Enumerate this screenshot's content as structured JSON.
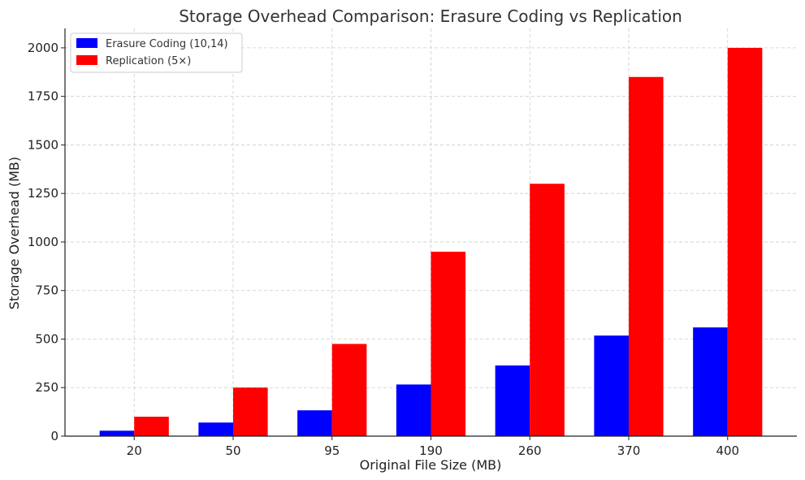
{
  "chart_data": {
    "type": "bar",
    "title": "Storage Overhead Comparison: Erasure Coding vs Replication",
    "xlabel": "Original File Size (MB)",
    "ylabel": "Storage Overhead (MB)",
    "categories": [
      "20",
      "50",
      "95",
      "190",
      "260",
      "370",
      "400"
    ],
    "series": [
      {
        "name": "Erasure Coding (10,14)",
        "color": "#0000ff",
        "values": [
          28,
          70,
          133,
          266,
          364,
          518,
          560
        ]
      },
      {
        "name": "Replication (5×)",
        "color": "#ff0000",
        "values": [
          100,
          250,
          475,
          950,
          1300,
          1850,
          2000
        ]
      }
    ],
    "ylim": [
      0,
      2100
    ],
    "yticks": [
      0,
      250,
      500,
      750,
      1000,
      1250,
      1500,
      1750,
      2000
    ],
    "grid": true,
    "legend": "top-left"
  }
}
